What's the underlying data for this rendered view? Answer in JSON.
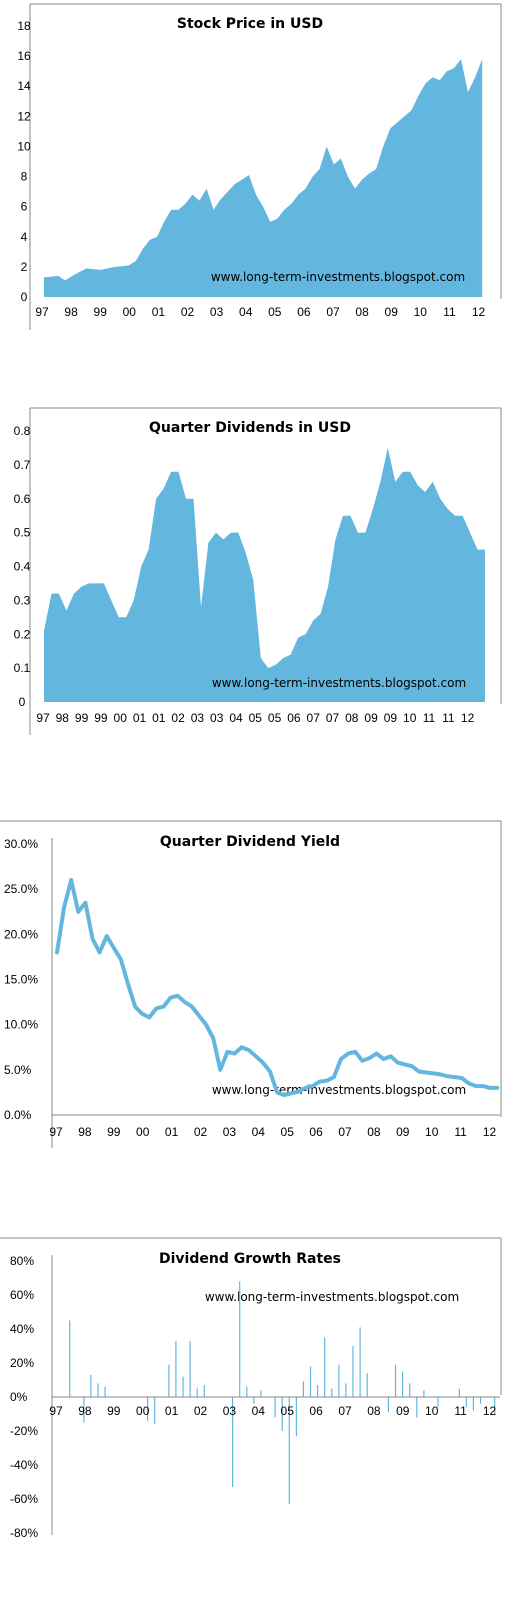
{
  "colors": {
    "fill": "#63b7de",
    "line": "#63b7de",
    "axis": "#888888"
  },
  "watermark": "www.long-term-investments.blogspot.com",
  "chart_data": [
    {
      "type": "area",
      "title": "Stock Price in USD",
      "ylim": [
        0,
        18
      ],
      "yticks": [
        "0",
        "2",
        "4",
        "6",
        "8",
        "10",
        "12",
        "14",
        "16",
        "18"
      ],
      "xticks": [
        "97",
        "98",
        "99",
        "00",
        "01",
        "02",
        "03",
        "04",
        "05",
        "06",
        "07",
        "08",
        "09",
        "10",
        "11",
        "12"
      ],
      "xlim": [
        1997,
        2012.6
      ],
      "x": [
        1997.0,
        1997.5,
        1997.75,
        1998.0,
        1998.5,
        1999.0,
        1999.5,
        2000.0,
        2000.25,
        2000.5,
        2000.75,
        2001.0,
        2001.25,
        2001.5,
        2001.75,
        2002.0,
        2002.25,
        2002.5,
        2002.75,
        2003.0,
        2003.25,
        2003.5,
        2003.75,
        2004.0,
        2004.25,
        2004.5,
        2004.75,
        2005.0,
        2005.25,
        2005.5,
        2005.75,
        2006.0,
        2006.25,
        2006.5,
        2006.75,
        2007.0,
        2007.25,
        2007.5,
        2007.75,
        2008.0,
        2008.25,
        2008.5,
        2008.75,
        2009.0,
        2009.25,
        2009.5,
        2009.75,
        2010.0,
        2010.25,
        2010.5,
        2010.75,
        2011.0,
        2011.25,
        2011.5,
        2011.75,
        2012.0,
        2012.25,
        2012.5
      ],
      "values": [
        1.3,
        1.4,
        1.1,
        1.4,
        1.9,
        1.8,
        2.0,
        2.1,
        2.4,
        3.2,
        3.8,
        4.0,
        5.0,
        5.8,
        5.8,
        6.2,
        6.8,
        6.4,
        7.2,
        5.8,
        6.5,
        7.0,
        7.5,
        7.8,
        8.1,
        6.8,
        6.0,
        5.0,
        5.2,
        5.8,
        6.2,
        6.8,
        7.2,
        8.0,
        8.5,
        10.0,
        8.8,
        9.2,
        8.0,
        7.2,
        7.8,
        8.2,
        8.5,
        10.0,
        11.2,
        11.6,
        12.0,
        12.4,
        13.4,
        14.2,
        14.6,
        14.4,
        15.0,
        15.2,
        15.8,
        13.6,
        14.6,
        15.8
      ]
    },
    {
      "type": "area",
      "title": "Quarter Dividends in USD",
      "ylim": [
        0,
        0.8
      ],
      "yticks": [
        "0",
        "0.1",
        "0.2",
        "0.3",
        "0.4",
        "0.5",
        "0.6",
        "0.7",
        "0.8"
      ],
      "xticks": [
        "97",
        "98",
        "99",
        "99",
        "00",
        "01",
        "01",
        "02",
        "03",
        "03",
        "04",
        "05",
        "05",
        "06",
        "07",
        "07",
        "08",
        "09",
        "09",
        "10",
        "11",
        "11",
        "12"
      ],
      "values": [
        0.21,
        0.32,
        0.32,
        0.27,
        0.32,
        0.34,
        0.35,
        0.35,
        0.35,
        0.3,
        0.25,
        0.25,
        0.3,
        0.4,
        0.45,
        0.6,
        0.63,
        0.68,
        0.68,
        0.6,
        0.6,
        0.28,
        0.47,
        0.5,
        0.48,
        0.5,
        0.5,
        0.44,
        0.36,
        0.13,
        0.1,
        0.11,
        0.13,
        0.14,
        0.19,
        0.2,
        0.24,
        0.26,
        0.34,
        0.48,
        0.55,
        0.55,
        0.5,
        0.5,
        0.57,
        0.65,
        0.75,
        0.65,
        0.68,
        0.68,
        0.64,
        0.62,
        0.65,
        0.6,
        0.57,
        0.55,
        0.55,
        0.5,
        0.45,
        0.45
      ]
    },
    {
      "type": "line",
      "title": "Quarter Dividend Yield",
      "ylim": [
        0,
        0.3
      ],
      "yticks": [
        "0.0%",
        "5.0%",
        "10.0%",
        "15.0%",
        "20.0%",
        "25.0%",
        "30.0%"
      ],
      "xticks": [
        "97",
        "98",
        "99",
        "00",
        "01",
        "02",
        "03",
        "04",
        "05",
        "06",
        "07",
        "08",
        "09",
        "10",
        "11",
        "12"
      ],
      "xlim": [
        1997,
        2012.6
      ],
      "x": [
        1997.0,
        1997.25,
        1997.5,
        1997.75,
        1998.0,
        1998.25,
        1998.5,
        1998.75,
        1999.0,
        1999.25,
        1999.5,
        1999.75,
        2000.0,
        2000.25,
        2000.5,
        2000.75,
        2001.0,
        2001.25,
        2001.5,
        2001.75,
        2002.0,
        2002.25,
        2002.5,
        2002.75,
        2003.0,
        2003.25,
        2003.5,
        2003.75,
        2004.0,
        2004.25,
        2004.5,
        2004.75,
        2005.0,
        2005.25,
        2005.5,
        2005.75,
        2006.0,
        2006.25,
        2006.5,
        2006.75,
        2007.0,
        2007.25,
        2007.5,
        2007.75,
        2008.0,
        2008.25,
        2008.5,
        2008.75,
        2009.0,
        2009.25,
        2009.5,
        2009.75,
        2010.0,
        2010.25,
        2010.5,
        2010.75,
        2011.0,
        2011.25,
        2011.5,
        2011.75,
        2012.0,
        2012.25,
        2012.5
      ],
      "values": [
        0.18,
        0.23,
        0.26,
        0.225,
        0.235,
        0.195,
        0.18,
        0.198,
        0.185,
        0.172,
        0.145,
        0.12,
        0.112,
        0.108,
        0.118,
        0.12,
        0.13,
        0.132,
        0.125,
        0.12,
        0.11,
        0.1,
        0.085,
        0.05,
        0.07,
        0.068,
        0.075,
        0.072,
        0.065,
        0.058,
        0.048,
        0.025,
        0.022,
        0.024,
        0.026,
        0.03,
        0.032,
        0.037,
        0.038,
        0.042,
        0.062,
        0.068,
        0.07,
        0.06,
        0.063,
        0.068,
        0.062,
        0.065,
        0.058,
        0.056,
        0.054,
        0.048,
        0.047,
        0.046,
        0.045,
        0.043,
        0.042,
        0.041,
        0.035,
        0.032,
        0.032,
        0.03,
        0.03
      ]
    },
    {
      "type": "bar",
      "title": "Dividend Growth Rates",
      "ylim": [
        -0.8,
        0.8
      ],
      "yticks": [
        "80%",
        "60%",
        "40%",
        "20%",
        "0%",
        "-20%",
        "-40%",
        "-60%",
        "-80%"
      ],
      "xticks": [
        "97",
        "98",
        "99",
        "00",
        "01",
        "02",
        "03",
        "04",
        "05",
        "06",
        "07",
        "08",
        "09",
        "10",
        "11",
        "12"
      ],
      "xlim": [
        1997,
        2012.6
      ],
      "x": [
        1997.0,
        1997.25,
        1997.5,
        1997.75,
        1998.0,
        1998.25,
        1998.5,
        1998.75,
        1999.0,
        1999.25,
        1999.5,
        1999.75,
        2000.0,
        2000.25,
        2000.5,
        2000.75,
        2001.0,
        2001.25,
        2001.5,
        2001.75,
        2002.0,
        2002.25,
        2002.5,
        2002.75,
        2003.0,
        2003.25,
        2003.5,
        2003.75,
        2004.0,
        2004.25,
        2004.5,
        2004.75,
        2005.0,
        2005.25,
        2005.5,
        2005.75,
        2006.0,
        2006.25,
        2006.5,
        2006.75,
        2007.0,
        2007.25,
        2007.5,
        2007.75,
        2008.0,
        2008.25,
        2008.5,
        2008.75,
        2009.0,
        2009.25,
        2009.5,
        2009.75,
        2010.0,
        2010.25,
        2010.5,
        2010.75,
        2011.0,
        2011.25,
        2011.5,
        2011.75,
        2012.0,
        2012.25
      ],
      "values": [
        0.0,
        0.45,
        0.0,
        -0.15,
        0.13,
        0.08,
        0.06,
        0.0,
        0.0,
        0.0,
        0.0,
        0.0,
        -0.14,
        -0.16,
        0.0,
        0.19,
        0.33,
        0.12,
        0.33,
        0.05,
        0.07,
        0.0,
        0.0,
        0.0,
        -0.53,
        0.68,
        0.06,
        -0.04,
        0.04,
        0.0,
        -0.12,
        -0.2,
        -0.63,
        -0.23,
        0.09,
        0.18,
        0.07,
        0.35,
        0.05,
        0.19,
        0.08,
        0.3,
        0.41,
        0.14,
        0.0,
        0.0,
        -0.09,
        0.19,
        0.15,
        0.08,
        -0.12,
        0.04,
        0.0,
        -0.06,
        0.0,
        0.0,
        0.05,
        -0.06,
        -0.08,
        -0.04,
        0.0,
        -0.1
      ]
    }
  ]
}
